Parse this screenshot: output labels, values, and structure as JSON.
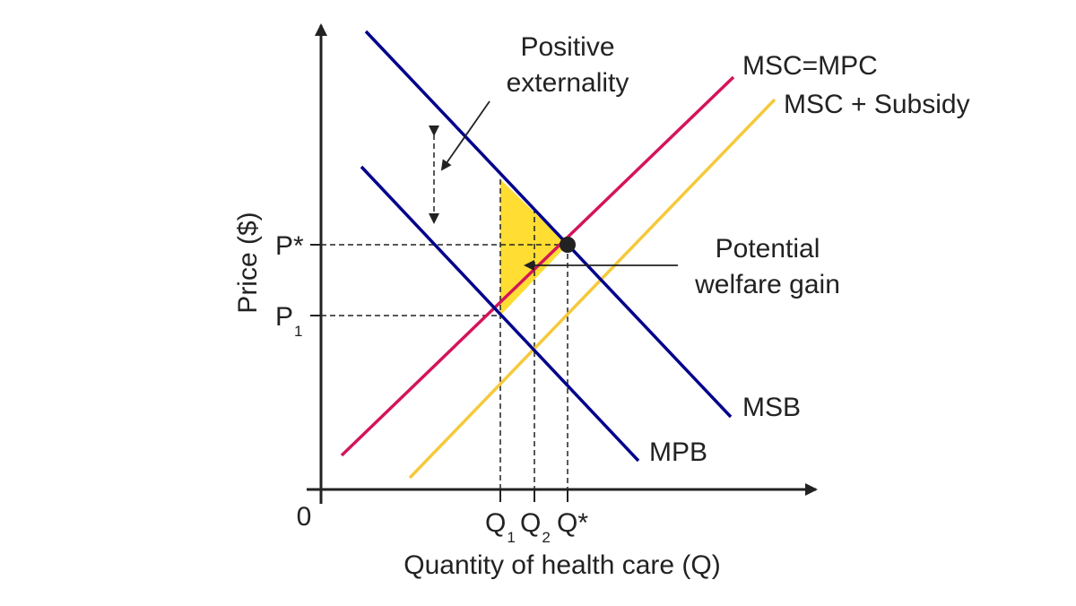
{
  "diagram": {
    "colors": {
      "axis": "#222222",
      "blue": "#00008B",
      "red": "#D4145A",
      "yellow": "#F5C93A",
      "fill": "#FFDD33"
    },
    "labels": {
      "y_axis": "Price ($)",
      "x_axis": "Quantity of health care (Q)",
      "origin": "0",
      "p_star": "P*",
      "p1_main": "P",
      "p1_sub": "1",
      "q1_main": "Q",
      "q1_sub": "1",
      "q2_main": "Q",
      "q2_sub": "2",
      "q_star": "Q*",
      "pos_ext_line1": "Positive",
      "pos_ext_line2": "externality",
      "welfare_line1": "Potential",
      "welfare_line2": "welfare gain",
      "msc_mpc": "MSC=MPC",
      "msc_subsidy": "MSC + Subsidy",
      "msb": "MSB",
      "mpb": "MPB"
    }
  }
}
